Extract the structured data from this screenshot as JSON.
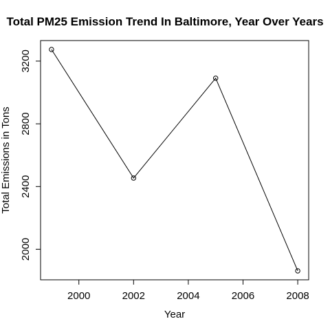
{
  "chart_data": {
    "type": "line",
    "title": "Total PM25 Emission Trend In Baltimore, Year Over Years",
    "xlabel": "Year",
    "ylabel": "Total Emissions in Tons",
    "x": [
      1999,
      2002,
      2005,
      2008
    ],
    "series": [
      {
        "values": [
          3274,
          2454,
          3091,
          1862
        ],
        "marker": "open-circle",
        "color": "#000000"
      }
    ],
    "xlim": [
      1998.6,
      2008.4
    ],
    "ylim": [
      1805,
      3331
    ],
    "xticks": [
      2000,
      2002,
      2004,
      2006,
      2008
    ],
    "yticks": [
      2000,
      2400,
      2800,
      3200
    ],
    "grid": false,
    "legend": "none"
  }
}
